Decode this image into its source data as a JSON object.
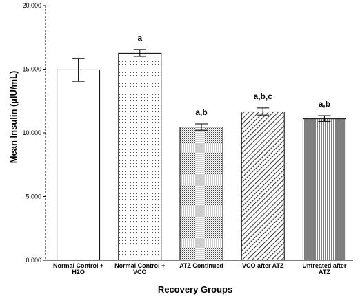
{
  "chart_data": {
    "type": "bar",
    "title": "",
    "xlabel": "Recovery Groups",
    "ylabel": "Mean Insulin (µIU/mL)",
    "ylim": [
      0,
      20
    ],
    "yticks": [
      "0.000",
      "5.000",
      "10.000",
      "15.000",
      "20.000"
    ],
    "ytick_values": [
      0,
      5,
      10,
      15,
      20
    ],
    "categories": [
      [
        "Normal Control +",
        "H2O"
      ],
      [
        "Normal Control +",
        "VCO"
      ],
      [
        "ATZ Continued"
      ],
      [
        "VCO after ATZ"
      ],
      [
        "Untreated after",
        "ATZ"
      ]
    ],
    "values": [
      14.95,
      16.25,
      10.45,
      11.65,
      11.1
    ],
    "error_low": [
      14.05,
      16.0,
      10.2,
      11.4,
      10.9
    ],
    "error_high": [
      15.85,
      16.55,
      10.7,
      11.95,
      11.35
    ],
    "significance": [
      "",
      "a",
      "a,b",
      "a,b,c",
      "a,b"
    ],
    "fill_patterns": [
      "none",
      "dots",
      "dense-dots",
      "diagonal-hatch",
      "vertical-lines"
    ],
    "grid": false
  }
}
